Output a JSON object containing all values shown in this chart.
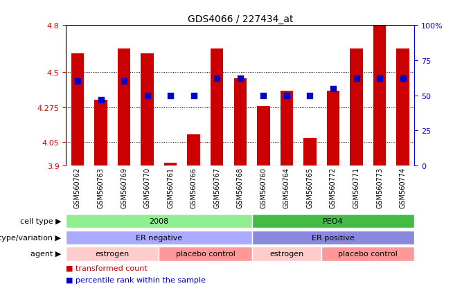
{
  "title": "GDS4066 / 227434_at",
  "samples": [
    "GSM560762",
    "GSM560763",
    "GSM560769",
    "GSM560770",
    "GSM560761",
    "GSM560766",
    "GSM560767",
    "GSM560768",
    "GSM560760",
    "GSM560764",
    "GSM560765",
    "GSM560772",
    "GSM560771",
    "GSM560773",
    "GSM560774"
  ],
  "transformed_count": [
    4.62,
    4.32,
    4.65,
    4.62,
    3.92,
    4.1,
    4.65,
    4.46,
    4.28,
    4.38,
    4.08,
    4.38,
    4.65,
    4.8,
    4.65
  ],
  "percentile_rank_pct": [
    60,
    47,
    60,
    50,
    50,
    50,
    62,
    62,
    50,
    50,
    50,
    55,
    62,
    62,
    62
  ],
  "ylim_left": [
    3.9,
    4.8
  ],
  "yticks_left": [
    3.9,
    4.05,
    4.275,
    4.5,
    4.8
  ],
  "ytick_labels_left": [
    "3.9",
    "4.05",
    "4.275",
    "4.5",
    "4.8"
  ],
  "ylim_right": [
    0,
    100
  ],
  "yticks_right": [
    0,
    25,
    50,
    75,
    100
  ],
  "ytick_labels_right": [
    "0",
    "25",
    "50",
    "75",
    "100%"
  ],
  "bar_color": "#CC0000",
  "dot_color": "#0000CC",
  "left_color": "#CC0000",
  "right_color": "#0000CC",
  "cell_type_groups": [
    {
      "label": "2008",
      "start": 0,
      "end": 8,
      "color": "#90EE90"
    },
    {
      "label": "PEO4",
      "start": 8,
      "end": 15,
      "color": "#44BB44"
    }
  ],
  "genotype_groups": [
    {
      "label": "ER negative",
      "start": 0,
      "end": 8,
      "color": "#AAAAFF"
    },
    {
      "label": "ER positive",
      "start": 8,
      "end": 15,
      "color": "#8888DD"
    }
  ],
  "agent_groups": [
    {
      "label": "estrogen",
      "start": 0,
      "end": 4,
      "color": "#FFCCCC"
    },
    {
      "label": "placebo control",
      "start": 4,
      "end": 8,
      "color": "#FF9999"
    },
    {
      "label": "estrogen",
      "start": 8,
      "end": 11,
      "color": "#FFCCCC"
    },
    {
      "label": "placebo control",
      "start": 11,
      "end": 15,
      "color": "#FF9999"
    }
  ],
  "bar_width": 0.55,
  "dot_size": 40,
  "grid_linestyle": ":",
  "grid_linewidth": 0.7,
  "grid_color": "black",
  "bg_color": "white",
  "row_labels": [
    "cell type",
    "genotype/variation",
    "agent"
  ],
  "legend_labels": [
    "transformed count",
    "percentile rank within the sample"
  ],
  "legend_colors": [
    "#CC0000",
    "#0000CC"
  ]
}
